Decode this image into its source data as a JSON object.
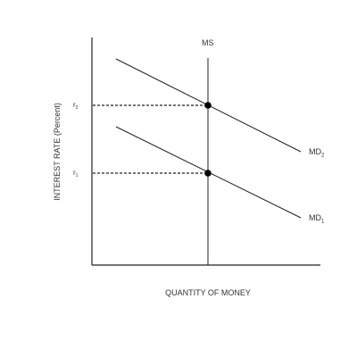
{
  "diagram": {
    "y_axis_label": "INTEREST RATE (Percent)",
    "x_axis_label": "QUANTITY OF MONEY",
    "money_supply_label": "MS",
    "rate_high": {
      "letter": "r",
      "sub": "2"
    },
    "rate_low": {
      "letter": "r",
      "sub": "1"
    },
    "demand_high": {
      "base": "MD",
      "sub": "2"
    },
    "demand_low": {
      "base": "MD",
      "sub": "1"
    }
  }
}
